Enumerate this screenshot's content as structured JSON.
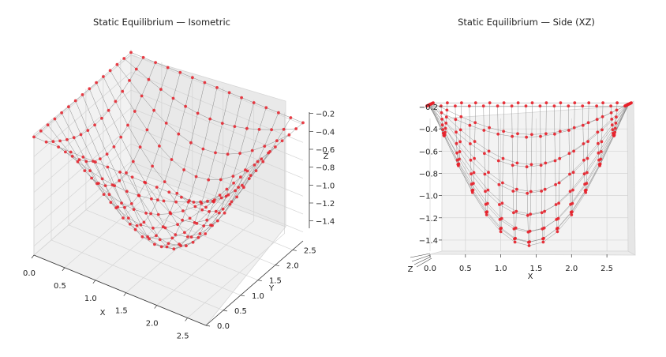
{
  "chart_data": [
    {
      "type": "scatter",
      "subtype": "3d-wireframe-mesh",
      "view": "isometric",
      "title": "Static Equilibrium — Isometric",
      "xlabel": "X",
      "ylabel": "Y",
      "zlabel": "Z",
      "x_ticks": [
        "0.0",
        "0.5",
        "1.0",
        "1.5",
        "2.0",
        "2.5"
      ],
      "y_ticks": [
        "0.0",
        "0.5",
        "1.0",
        "1.5",
        "2.0",
        "2.5"
      ],
      "z_ticks": [
        "−1.4",
        "−1.2",
        "−1.0",
        "−0.8",
        "−0.6",
        "−0.4",
        "−0.2"
      ],
      "xlim": [
        0,
        2.8
      ],
      "ylim": [
        0,
        2.8
      ],
      "zlim": [
        -1.5,
        -0.15
      ],
      "mesh": {
        "nx": 15,
        "ny": 15,
        "x_range": [
          0,
          2.8
        ],
        "y_range": [
          0,
          2.8
        ],
        "z_edge": -0.18,
        "z_center": -1.45
      },
      "grid": true,
      "colors": {
        "nodes": "#e8202a",
        "edges": "#8a8a8a",
        "pane": "#f2f2f2"
      }
    },
    {
      "type": "scatter",
      "subtype": "3d-wireframe-mesh",
      "view": "side-xz",
      "title": "Static Equilibrium — Side (XZ)",
      "xlabel": "X",
      "zlabel": "Z",
      "x_ticks": [
        "0.0",
        "0.5",
        "1.0",
        "1.5",
        "2.0",
        "2.5"
      ],
      "z_ticks": [
        "−1.4",
        "−1.2",
        "−1.0",
        "−0.8",
        "−0.6",
        "−0.4",
        "−0.2"
      ],
      "xlim": [
        0,
        2.8
      ],
      "zlim": [
        -1.5,
        -0.15
      ],
      "mesh": {
        "nx": 15,
        "ny": 15,
        "x_range": [
          0,
          2.8
        ],
        "y_range": [
          0,
          2.8
        ],
        "z_edge": -0.18,
        "z_center": -1.45
      },
      "grid": true,
      "colors": {
        "nodes": "#e8202a",
        "edges": "#8a8a8a",
        "pane": "#f2f2f2"
      }
    }
  ]
}
